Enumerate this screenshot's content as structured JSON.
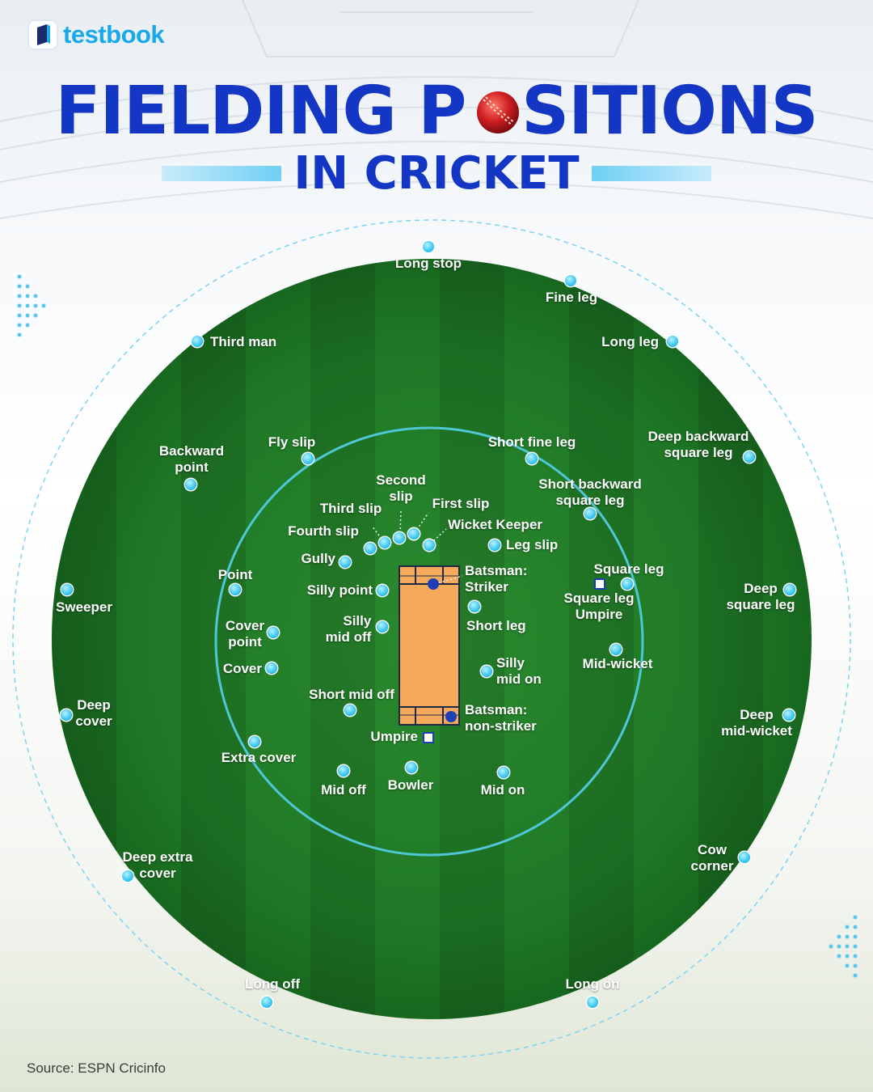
{
  "brand": {
    "name": "testbook"
  },
  "header": {
    "title_part1": "FIELDING P",
    "title_part2": "SITIONS",
    "subtitle": "IN CRICKET"
  },
  "source": "Source: ESPN Cricinfo",
  "colors": {
    "title_blue": "#1336c4",
    "brand_cyan": "#19a9e8",
    "field_green": "#1f7a26",
    "marker_cyan": "#39c6ee",
    "pitch_orange": "#f4a95b"
  },
  "icons": {
    "title_o": "cricket-ball-icon",
    "logo": "testbook-logo-icon"
  },
  "positions": {
    "long_stop": "Long stop",
    "fine_leg": "Fine leg",
    "third_man": "Third man",
    "long_leg": "Long leg",
    "backward_point_1": "Backward",
    "backward_point_2": "point",
    "fly_slip": "Fly slip",
    "short_fine_leg": "Short fine leg",
    "deep_backward_square_leg_1": "Deep backward",
    "deep_backward_square_leg_2": "square leg",
    "second_slip_1": "Second",
    "second_slip_2": "slip",
    "short_backward_square_leg_1": "Short backward",
    "short_backward_square_leg_2": "square leg",
    "third_slip": "Third slip",
    "first_slip": "First slip",
    "fourth_slip": "Fourth slip",
    "wicket_keeper": "Wicket Keeper",
    "leg_slip": "Leg slip",
    "gully": "Gully",
    "batsman_striker_1": "Batsman:",
    "batsman_striker_2": "Striker",
    "point": "Point",
    "square_leg": "Square leg",
    "silly_point": "Silly point",
    "sweeper": "Sweeper",
    "deep_square_leg_1": "Deep",
    "deep_square_leg_2": "square leg",
    "square_leg_umpire_1": "Square leg",
    "square_leg_umpire_2": "Umpire",
    "short_leg": "Short leg",
    "cover_point_1": "Cover",
    "cover_point_2": "point",
    "silly_mid_off_1": "Silly",
    "silly_mid_off_2": "mid off",
    "silly_mid_on_1": "Silly",
    "silly_mid_on_2": "mid on",
    "mid_wicket": "Mid-wicket",
    "cover": "Cover",
    "short_mid_off": "Short mid off",
    "deep_cover_1": "Deep",
    "deep_cover_2": "cover",
    "batsman_non_striker_1": "Batsman:",
    "batsman_non_striker_2": "non-striker",
    "deep_mid_wicket_1": "Deep",
    "deep_mid_wicket_2": "mid-wicket",
    "umpire": "Umpire",
    "extra_cover": "Extra cover",
    "mid_off": "Mid off",
    "bowler": "Bowler",
    "mid_on": "Mid on",
    "deep_extra_cover_1": "Deep extra",
    "deep_extra_cover_2": "cover",
    "cow_corner_1": "Cow",
    "cow_corner_2": "corner",
    "long_off": "Long off",
    "long_on": "Long on"
  }
}
